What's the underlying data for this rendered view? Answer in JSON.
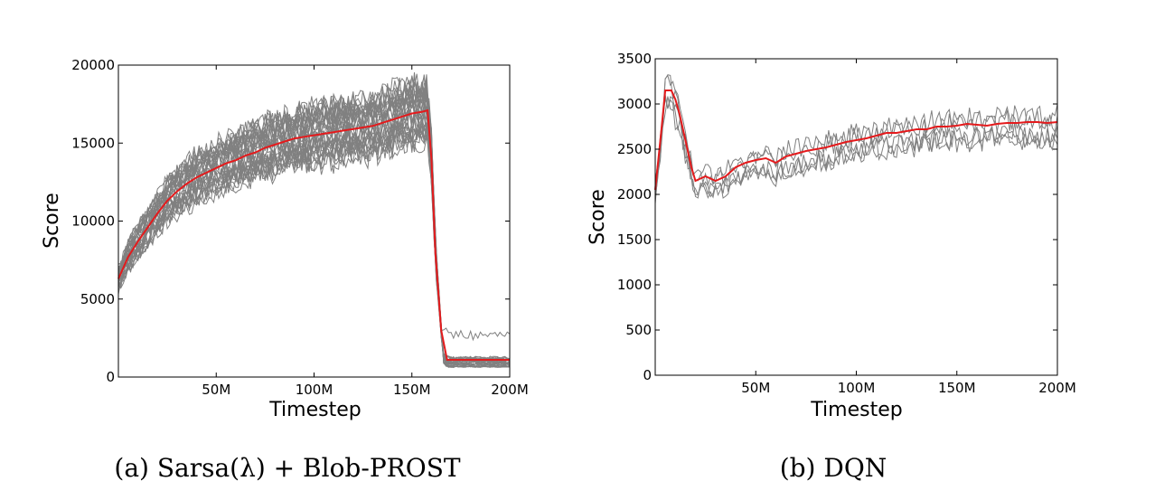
{
  "figure": {
    "captions": [
      "(a) Sarsa(λ) + Blob-PROST",
      "(b) DQN"
    ]
  },
  "colors": {
    "runs": "#808080",
    "mean": "#e41a1c",
    "frame": "#000000"
  },
  "chart_data": [
    {
      "type": "line",
      "title": "",
      "caption": "(a) Sarsa(λ) + Blob-PROST",
      "xlabel": "Timestep",
      "ylabel": "Score",
      "xlim": [
        0,
        200
      ],
      "ylim": [
        0,
        20000
      ],
      "xticks": [
        50,
        100,
        150,
        200
      ],
      "xtick_labels": [
        "50M",
        "100M",
        "150M",
        "200M"
      ],
      "yticks": [
        0,
        5000,
        10000,
        15000,
        20000
      ],
      "ytick_labels": [
        "0",
        "5000",
        "10000",
        "15000",
        "20000"
      ],
      "x": [
        0,
        5,
        10,
        15,
        20,
        25,
        30,
        35,
        40,
        45,
        50,
        55,
        60,
        65,
        70,
        75,
        80,
        85,
        90,
        95,
        100,
        105,
        110,
        115,
        120,
        125,
        130,
        135,
        140,
        145,
        150,
        155,
        158,
        160,
        162,
        165,
        168,
        170,
        180,
        190,
        200
      ],
      "mean": [
        6300,
        7700,
        8700,
        9600,
        10500,
        11300,
        11900,
        12400,
        12800,
        13100,
        13400,
        13700,
        13900,
        14200,
        14400,
        14700,
        14900,
        15100,
        15300,
        15400,
        15500,
        15600,
        15700,
        15800,
        15900,
        16000,
        16100,
        16300,
        16500,
        16700,
        16900,
        17000,
        17100,
        14000,
        8000,
        3000,
        1100,
        1100,
        1100,
        1100,
        1100
      ],
      "runs_count": 30,
      "runs_label": "individual runs (gray)",
      "mean_label": "average (red)"
    },
    {
      "type": "line",
      "title": "",
      "caption": "(b) DQN",
      "xlabel": "Timestep",
      "ylabel": "Score",
      "xlim": [
        0,
        200
      ],
      "ylim": [
        0,
        3500
      ],
      "xticks": [
        50,
        100,
        150,
        200
      ],
      "xtick_labels": [
        "50M",
        "100M",
        "150M",
        "200M"
      ],
      "yticks": [
        0,
        500,
        1000,
        1500,
        2000,
        2500,
        3000,
        3500
      ],
      "ytick_labels": [
        "0",
        "500",
        "1000",
        "1500",
        "2000",
        "2500",
        "3000",
        "3500"
      ],
      "x": [
        0,
        3,
        5,
        8,
        10,
        12,
        15,
        18,
        20,
        25,
        30,
        35,
        40,
        45,
        50,
        55,
        60,
        65,
        70,
        75,
        80,
        85,
        90,
        95,
        100,
        105,
        110,
        115,
        120,
        125,
        130,
        135,
        140,
        145,
        150,
        155,
        160,
        165,
        170,
        175,
        180,
        185,
        190,
        195,
        200
      ],
      "mean": [
        2050,
        2700,
        3150,
        3150,
        3050,
        2900,
        2600,
        2300,
        2150,
        2200,
        2150,
        2200,
        2300,
        2350,
        2380,
        2400,
        2350,
        2420,
        2450,
        2480,
        2500,
        2520,
        2550,
        2580,
        2600,
        2620,
        2650,
        2680,
        2680,
        2700,
        2720,
        2720,
        2750,
        2750,
        2760,
        2780,
        2770,
        2760,
        2780,
        2790,
        2790,
        2800,
        2800,
        2790,
        2800
      ],
      "runs_count": 5,
      "runs_label": "individual runs (gray)",
      "mean_label": "average (red)"
    }
  ]
}
